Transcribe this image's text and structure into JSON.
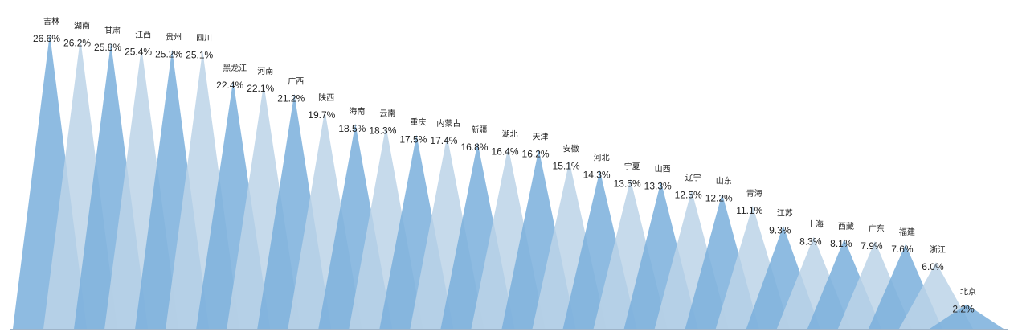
{
  "chart_data": {
    "type": "bar",
    "shape": "triangle",
    "categories": [
      "吉林",
      "湖南",
      "甘肃",
      "江西",
      "贵州",
      "四川",
      "黑龙江",
      "河南",
      "广西",
      "陕西",
      "海南",
      "云南",
      "重庆",
      "内蒙古",
      "新疆",
      "湖北",
      "天津",
      "安徽",
      "河北",
      "宁夏",
      "山西",
      "辽宁",
      "山东",
      "青海",
      "江苏",
      "上海",
      "西藏",
      "广东",
      "福建",
      "浙江",
      "北京"
    ],
    "values": [
      26.6,
      26.2,
      25.8,
      25.4,
      25.2,
      25.1,
      22.4,
      22.1,
      21.2,
      19.7,
      18.5,
      18.3,
      17.5,
      17.4,
      16.8,
      16.4,
      16.2,
      15.1,
      14.3,
      13.5,
      13.3,
      12.5,
      12.2,
      11.1,
      9.3,
      8.3,
      8.1,
      7.9,
      7.6,
      6.0,
      2.2
    ],
    "value_labels": [
      "26.6%",
      "26.2%",
      "25.8%",
      "25.4%",
      "25.2%",
      "25.1%",
      "22.4%",
      "22.1%",
      "21.2%",
      "19.7%",
      "18.5%",
      "18.3%",
      "17.5%",
      "17.4%",
      "16.8%",
      "16.4%",
      "16.2%",
      "15.1%",
      "14.3%",
      "13.5%",
      "13.3%",
      "12.5%",
      "12.2%",
      "11.1%",
      "9.3%",
      "8.3%",
      "8.1%",
      "7.9%",
      "7.6%",
      "6.0%",
      "2.2%"
    ],
    "unit": "%",
    "ylim": [
      0,
      26.6
    ],
    "grid": false,
    "legend": "none",
    "colors": {
      "dark": "#7aafdc",
      "light": "#bcd4e8",
      "axis": "#9fb4c8"
    }
  }
}
